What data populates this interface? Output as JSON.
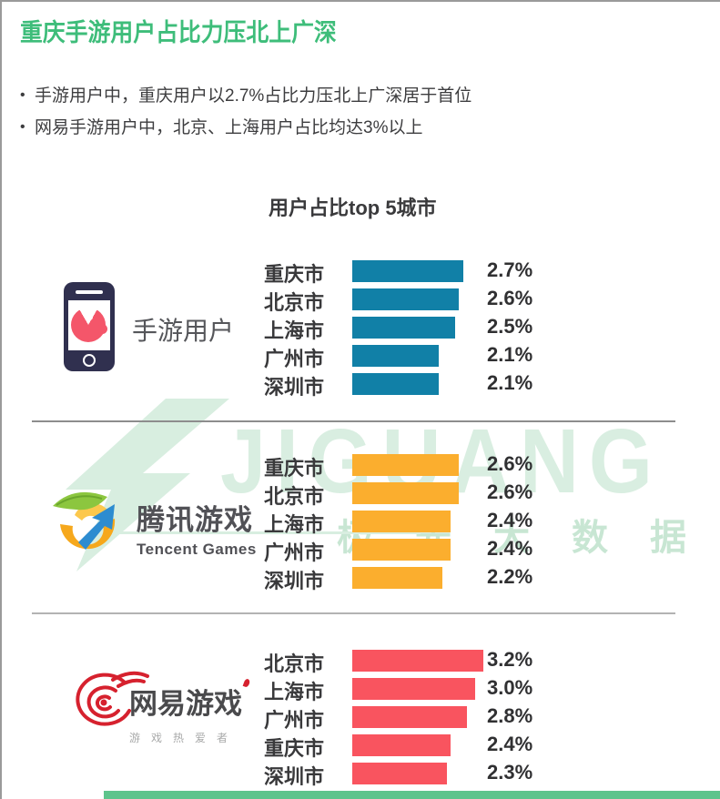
{
  "page": {
    "title": "重庆手游用户占比力压北上广深",
    "bullets": [
      "手游用户中，重庆用户以2.7%占比力压北上广深居于首位",
      "网易手游用户中，北京、上海用户占比均达3%以上"
    ],
    "accent_green": "#3ebd7a"
  },
  "watermark": {
    "brand": "JIGUANG",
    "brand_cn": "极光大数据",
    "color": "#d9eee1"
  },
  "chart_data": {
    "type": "bar",
    "orientation": "horizontal",
    "title": "用户占比top 5城市",
    "unit": "%",
    "xlim": [
      0,
      3.5
    ],
    "grid": false,
    "value_labels": "right of bars",
    "groups": [
      {
        "name": "手游用户",
        "icon": "mobile-game-phone-icon",
        "color": "#1180a7",
        "categories": [
          "重庆市",
          "北京市",
          "上海市",
          "广州市",
          "深圳市"
        ],
        "values": [
          2.7,
          2.6,
          2.5,
          2.1,
          2.1
        ],
        "labels": [
          "2.7%",
          "2.6%",
          "2.5%",
          "2.1%",
          "2.1%"
        ]
      },
      {
        "name": "腾讯游戏",
        "subtitle": "Tencent Games",
        "icon": "tencent-games-logo",
        "color": "#fbae2e",
        "categories": [
          "重庆市",
          "北京市",
          "上海市",
          "广州市",
          "深圳市"
        ],
        "values": [
          2.6,
          2.6,
          2.4,
          2.4,
          2.2
        ],
        "labels": [
          "2.6%",
          "2.6%",
          "2.4%",
          "2.4%",
          "2.2%"
        ]
      },
      {
        "name": "网易游戏",
        "subtitle": "游戏热爱者",
        "icon": "netease-games-logo",
        "color": "#f9545f",
        "categories": [
          "北京市",
          "上海市",
          "广州市",
          "重庆市",
          "深圳市"
        ],
        "values": [
          3.2,
          3.0,
          2.8,
          2.4,
          2.3
        ],
        "labels": [
          "3.2%",
          "3.0%",
          "2.8%",
          "2.4%",
          "2.3%"
        ]
      }
    ]
  }
}
